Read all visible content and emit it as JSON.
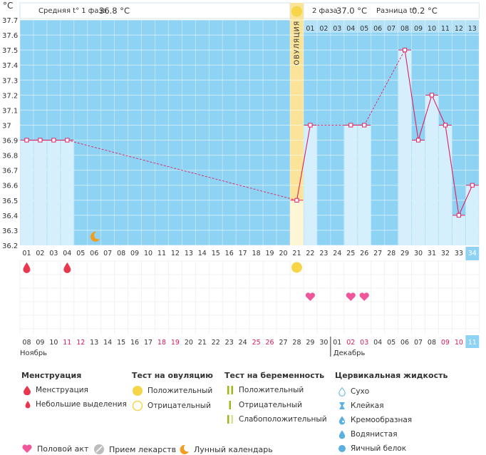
{
  "chart_data": {
    "type": "line",
    "title_unit": "°C",
    "summary": {
      "phase1_label": "Средняя t° 1 фаза",
      "phase1_value": "36.8 °C",
      "phase2_label": "2 фаза",
      "phase2_value": "37.0 °C",
      "diff_label": "Разница t°",
      "diff_value": "0.2 °C"
    },
    "ovulation_label": "ОВУЛЯЦИЯ",
    "ovulation_day": 21,
    "ylim": [
      36.2,
      37.7
    ],
    "y_ticks": [
      "37.7",
      "37.6",
      "37.5",
      "37.4",
      "37.3",
      "37.2",
      "37.1",
      "37",
      "36.9",
      "36.8",
      "36.7",
      "36.6",
      "36.5",
      "36.4",
      "36.3",
      "36.2"
    ],
    "top_days": [
      "01",
      "02",
      "03",
      "04",
      "05",
      "06",
      "07",
      "08",
      "09",
      "10",
      "11",
      "12",
      "13"
    ],
    "cycle_days": [
      "01",
      "02",
      "03",
      "04",
      "05",
      "06",
      "07",
      "08",
      "09",
      "10",
      "11",
      "12",
      "13",
      "14",
      "15",
      "16",
      "17",
      "18",
      "19",
      "20",
      "21",
      "22",
      "23",
      "24",
      "25",
      "26",
      "27",
      "28",
      "29",
      "30",
      "31",
      "32",
      "33",
      "34"
    ],
    "dates": [
      "08",
      "09",
      "10",
      "11",
      "12",
      "13",
      "14",
      "15",
      "16",
      "17",
      "18",
      "19",
      "20",
      "21",
      "22",
      "23",
      "24",
      "25",
      "26",
      "27",
      "28",
      "29",
      "30",
      "01",
      "02",
      "03",
      "04",
      "05",
      "06",
      "07",
      "08",
      "09",
      "10",
      "11"
    ],
    "weekend_dates": [
      3,
      4,
      10,
      11,
      17,
      18,
      24,
      25,
      31,
      32
    ],
    "months": [
      "Ноябрь",
      "Декабрь"
    ],
    "temperatures": [
      {
        "day": 1,
        "temp": 36.9
      },
      {
        "day": 2,
        "temp": 36.9
      },
      {
        "day": 3,
        "temp": 36.9
      },
      {
        "day": 4,
        "temp": 36.9
      },
      {
        "day": 21,
        "temp": 36.5
      },
      {
        "day": 22,
        "temp": 37.0
      },
      {
        "day": 25,
        "temp": 37.0
      },
      {
        "day": 26,
        "temp": 37.0
      },
      {
        "day": 29,
        "temp": 37.5
      },
      {
        "day": 30,
        "temp": 36.9
      },
      {
        "day": 31,
        "temp": 37.2
      },
      {
        "day": 32,
        "temp": 37.0
      },
      {
        "day": 33,
        "temp": 36.4
      },
      {
        "day": 34,
        "temp": 36.6
      }
    ],
    "events": {
      "menstruation": [
        1
      ],
      "light_discharge": [
        4
      ],
      "ovulation_test_positive": [
        21
      ],
      "intercourse": [
        22,
        25,
        26
      ],
      "lunar": [
        6
      ]
    }
  },
  "legend": {
    "menstruation_title": "Менструация",
    "menstruation_items": [
      "Менструация",
      "Небольшие выделения"
    ],
    "ovulation_title": "Тест на овуляцию",
    "ovulation_items": [
      "Положительный",
      "Отрицательный"
    ],
    "pregnancy_title": "Тест на беременность",
    "pregnancy_items": [
      "Положительный",
      "Отрицательный",
      "Слабоположительный"
    ],
    "cervical_title": "Цервикальная жидкость",
    "cervical_items": [
      "Сухо",
      "Клейкая",
      "Кремообразная",
      "Водянистая",
      "Яичный белок"
    ],
    "footer_items": [
      "Половой акт",
      "Прием лекарств",
      "Лунный календарь"
    ]
  },
  "colors": {
    "bg_blue": "#8fd3f4",
    "bar_fill": "#d6effc",
    "line": "#e0205e",
    "ovulation": "#fbe49a",
    "heart": "#f0569a",
    "drop": "#e8384f",
    "sun": "#f7d549",
    "moon": "#f39c1e",
    "highlight": "#8fd3f4"
  }
}
